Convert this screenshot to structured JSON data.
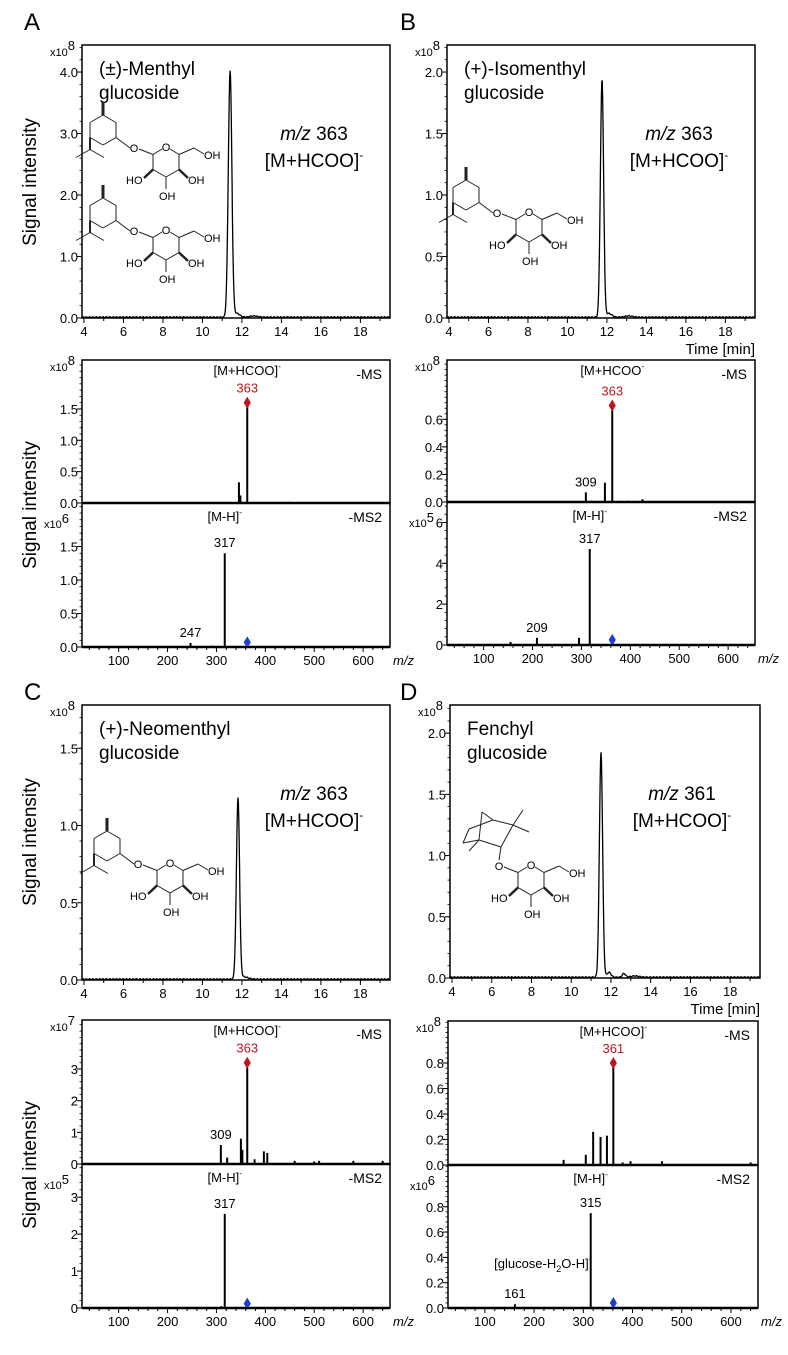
{
  "figure": {
    "panel_letters": [
      "A",
      "B",
      "C",
      "D"
    ],
    "y_axis_title": "Signal intensity",
    "time_label": "Time [min]",
    "mz_axis_label": "m/z",
    "exp_base": "x10"
  },
  "structure_labels": {
    "ring_o": "O",
    "link_o": "O",
    "oh": "OH",
    "ho": "HO"
  },
  "colors": {
    "precursor": "#c0141c",
    "isolation": "#1f3fd0",
    "line": "#000000"
  },
  "chart_data": [
    {
      "panel": "A",
      "kind": "chromatogram",
      "type": "line",
      "title_lines": [
        "(±)-Menthyl",
        "glucoside"
      ],
      "mz_text": {
        "prefix": "m/z",
        "value": "363",
        "ion": "[M+HCOO]",
        "charge": "-"
      },
      "exponent": "8",
      "xlabel": "",
      "ylabel": "Signal intensity",
      "xlim": [
        3.9,
        19.5
      ],
      "ylim": [
        0,
        4.44
      ],
      "xticks": [
        4,
        6,
        8,
        10,
        12,
        14,
        16,
        18
      ],
      "yticks": [
        "0.0",
        "1.0",
        "2.0",
        "3.0",
        "4.0"
      ],
      "peaks": [
        {
          "rt": 11.4,
          "height": 4.0,
          "width": 0.09
        },
        {
          "rt": 11.75,
          "height": 0.06,
          "width": 0.15
        },
        {
          "rt": 12.6,
          "height": 0.02,
          "width": 0.2
        }
      ]
    },
    {
      "panel": "A",
      "kind": "ms",
      "type": "bar",
      "mode": "-MS",
      "exponent": "8",
      "ylabel": "Signal intensity",
      "xlim": [
        25,
        655
      ],
      "ylim": [
        0,
        2.28
      ],
      "yticks": [
        "0.0",
        "0.5",
        "1.0",
        "1.5"
      ],
      "peaks": [
        {
          "mz": 346,
          "intensity": 0.33
        },
        {
          "mz": 349,
          "intensity": 0.12
        },
        {
          "mz": 363,
          "intensity": 1.55
        },
        {
          "mz": 450,
          "intensity": 0.02
        }
      ],
      "ion_label": {
        "text": "[M+HCOO]",
        "charge": "-",
        "mz": 363
      },
      "precursor": {
        "mz": 363,
        "intensity": 1.6,
        "label": "363"
      },
      "peak_labels": []
    },
    {
      "panel": "A",
      "kind": "ms2",
      "type": "bar",
      "mode": "-MS2",
      "exponent": "6",
      "xlabel": "m/z",
      "xlim": [
        25,
        655
      ],
      "ylim": [
        0,
        2.15
      ],
      "yticks": [
        "0.0",
        "0.5",
        "1.0",
        "1.5"
      ],
      "xticks": [
        100,
        200,
        300,
        400,
        500,
        600
      ],
      "peaks": [
        {
          "mz": 120,
          "intensity": 0.01
        },
        {
          "mz": 247,
          "intensity": 0.06
        },
        {
          "mz": 290,
          "intensity": 0.02
        },
        {
          "mz": 317,
          "intensity": 1.4
        }
      ],
      "ion_label": {
        "text": "[M-H]",
        "charge": "-",
        "mz": 317
      },
      "peak_labels": [
        {
          "mz": 317,
          "label": "317"
        },
        {
          "mz": 247,
          "label": "247"
        }
      ],
      "isolation_marker": {
        "mz": 363,
        "intensity": 0.07
      }
    },
    {
      "panel": "B",
      "kind": "chromatogram",
      "type": "line",
      "title_lines": [
        "(+)-Isomenthyl",
        "glucoside"
      ],
      "mz_text": {
        "prefix": "m/z",
        "value": "363",
        "ion": "[M+HCOO]",
        "charge": "-"
      },
      "exponent": "8",
      "xlabel": "Time [min]",
      "xlim": [
        3.9,
        19.5
      ],
      "ylim": [
        0,
        2.22
      ],
      "xticks": [
        4,
        6,
        8,
        10,
        12,
        14,
        16,
        18
      ],
      "yticks": [
        "0.0",
        "0.5",
        "1.0",
        "1.5",
        "2.0"
      ],
      "peaks": [
        {
          "rt": 11.75,
          "height": 1.93,
          "width": 0.08
        },
        {
          "rt": 12.1,
          "height": 0.03,
          "width": 0.15
        },
        {
          "rt": 13.1,
          "height": 0.01,
          "width": 0.2
        }
      ]
    },
    {
      "panel": "B",
      "kind": "ms",
      "type": "bar",
      "mode": "-MS",
      "exponent": "8",
      "xlim": [
        25,
        655
      ],
      "ylim": [
        0,
        1.03
      ],
      "yticks": [
        "0.0",
        "0.2",
        "0.4",
        "0.6"
      ],
      "peaks": [
        {
          "mz": 309,
          "intensity": 0.07
        },
        {
          "mz": 320,
          "intensity": 0.01
        },
        {
          "mz": 348,
          "intensity": 0.14
        },
        {
          "mz": 363,
          "intensity": 0.68
        },
        {
          "mz": 380,
          "intensity": 0.01
        },
        {
          "mz": 395,
          "intensity": 0.01
        },
        {
          "mz": 425,
          "intensity": 0.02
        }
      ],
      "ion_label": {
        "text": "[M+HCOO",
        "charge": "-",
        "mz": 363
      },
      "precursor": {
        "mz": 363,
        "intensity": 0.7,
        "label": "363"
      },
      "peak_labels": [
        {
          "mz": 309,
          "label": "309"
        }
      ]
    },
    {
      "panel": "B",
      "kind": "ms2",
      "type": "bar",
      "mode": "-MS2",
      "exponent": "5",
      "xlabel": "m/z",
      "xlim": [
        25,
        655
      ],
      "ylim": [
        0,
        7.0
      ],
      "yticks": [
        "0",
        "2",
        "4",
        "6"
      ],
      "xticks": [
        100,
        200,
        300,
        400,
        500,
        600
      ],
      "peaks": [
        {
          "mz": 155,
          "intensity": 0.15
        },
        {
          "mz": 209,
          "intensity": 0.35
        },
        {
          "mz": 295,
          "intensity": 0.35
        },
        {
          "mz": 317,
          "intensity": 4.7
        }
      ],
      "ion_label": {
        "text": "[M-H]",
        "charge": "-",
        "mz": 317
      },
      "peak_labels": [
        {
          "mz": 317,
          "label": "317"
        },
        {
          "mz": 209,
          "label": "209"
        }
      ],
      "isolation_marker": {
        "mz": 363,
        "intensity": 0.25
      }
    },
    {
      "panel": "C",
      "kind": "chromatogram",
      "type": "line",
      "title_lines": [
        "(+)-Neomenthyl",
        "glucoside"
      ],
      "mz_text": {
        "prefix": "m/z",
        "value": "363",
        "ion": "[M+HCOO]",
        "charge": "-"
      },
      "exponent": "8",
      "xlabel": "",
      "ylabel": "Signal intensity",
      "xlim": [
        3.9,
        19.5
      ],
      "ylim": [
        0,
        1.78
      ],
      "xticks": [
        4,
        6,
        8,
        10,
        12,
        14,
        16,
        18
      ],
      "yticks": [
        "0.0",
        "0.5",
        "1.0",
        "1.5"
      ],
      "peaks": [
        {
          "rt": 11.8,
          "height": 1.17,
          "width": 0.08
        },
        {
          "rt": 12.1,
          "height": 0.015,
          "width": 0.2
        }
      ]
    },
    {
      "panel": "C",
      "kind": "ms",
      "type": "bar",
      "mode": "-MS",
      "exponent": "7",
      "ylabel": "Signal intensity",
      "xlim": [
        25,
        655
      ],
      "ylim": [
        0,
        4.55
      ],
      "yticks": [
        "0",
        "1",
        "2",
        "3"
      ],
      "peaks": [
        {
          "mz": 240,
          "intensity": 0.03
        },
        {
          "mz": 309,
          "intensity": 0.6
        },
        {
          "mz": 322,
          "intensity": 0.2
        },
        {
          "mz": 350,
          "intensity": 0.8
        },
        {
          "mz": 353,
          "intensity": 0.45
        },
        {
          "mz": 363,
          "intensity": 3.05
        },
        {
          "mz": 378,
          "intensity": 0.15
        },
        {
          "mz": 397,
          "intensity": 0.4
        },
        {
          "mz": 404,
          "intensity": 0.35
        },
        {
          "mz": 460,
          "intensity": 0.1
        },
        {
          "mz": 500,
          "intensity": 0.08
        },
        {
          "mz": 510,
          "intensity": 0.1
        },
        {
          "mz": 580,
          "intensity": 0.1
        },
        {
          "mz": 640,
          "intensity": 0.1
        }
      ],
      "ion_label": {
        "text": "[M+HCOO]",
        "charge": "-",
        "mz": 363
      },
      "precursor": {
        "mz": 363,
        "intensity": 3.2,
        "label": "363"
      },
      "peak_labels": [
        {
          "mz": 309,
          "label": "309"
        }
      ]
    },
    {
      "panel": "C",
      "kind": "ms2",
      "type": "bar",
      "mode": "-MS2",
      "exponent": "5",
      "xlabel": "m/z",
      "xlim": [
        25,
        655
      ],
      "ylim": [
        0,
        3.9
      ],
      "yticks": [
        "0",
        "1",
        "2",
        "3"
      ],
      "xticks": [
        100,
        200,
        300,
        400,
        500,
        600
      ],
      "peaks": [
        {
          "mz": 310,
          "intensity": 0.05
        },
        {
          "mz": 317,
          "intensity": 2.55
        }
      ],
      "ion_label": {
        "text": "[M-H]",
        "charge": "-",
        "mz": 317
      },
      "peak_labels": [
        {
          "mz": 317,
          "label": "317"
        }
      ],
      "isolation_marker": {
        "mz": 363,
        "intensity": 0.12
      }
    },
    {
      "panel": "D",
      "kind": "chromatogram",
      "type": "line",
      "title_lines": [
        "Fenchyl",
        "glucoside"
      ],
      "mz_text": {
        "prefix": "m/z",
        "value": "361",
        "ion": "[M+HCOO]",
        "charge": "-"
      },
      "exponent": "8",
      "xlabel": "Time [min]",
      "xlim": [
        3.9,
        19.5
      ],
      "ylim": [
        0,
        2.23
      ],
      "xticks": [
        4,
        6,
        8,
        10,
        12,
        14,
        16,
        18
      ],
      "yticks": [
        "0.0",
        "0.5",
        "1.0",
        "1.5",
        "2.0"
      ],
      "peaks": [
        {
          "rt": 11.5,
          "height": 1.84,
          "width": 0.08
        },
        {
          "rt": 11.9,
          "height": 0.04,
          "width": 0.1
        },
        {
          "rt": 12.65,
          "height": 0.03,
          "width": 0.08
        },
        {
          "rt": 13.2,
          "height": 0.01,
          "width": 0.2
        }
      ]
    },
    {
      "panel": "D",
      "kind": "ms",
      "type": "bar",
      "mode": "-MS",
      "exponent": "8",
      "xlim": [
        25,
        655
      ],
      "ylim": [
        0,
        1.13
      ],
      "yticks": [
        "0.0",
        "0.2",
        "0.4",
        "0.6",
        "0.8"
      ],
      "peaks": [
        {
          "mz": 260,
          "intensity": 0.04
        },
        {
          "mz": 305,
          "intensity": 0.08
        },
        {
          "mz": 320,
          "intensity": 0.26
        },
        {
          "mz": 335,
          "intensity": 0.22
        },
        {
          "mz": 348,
          "intensity": 0.23
        },
        {
          "mz": 361,
          "intensity": 0.78
        },
        {
          "mz": 380,
          "intensity": 0.02
        },
        {
          "mz": 396,
          "intensity": 0.03
        },
        {
          "mz": 460,
          "intensity": 0.03
        },
        {
          "mz": 640,
          "intensity": 0.02
        }
      ],
      "ion_label": {
        "text": "[M+HCOO]",
        "charge": "-",
        "mz": 361
      },
      "precursor": {
        "mz": 361,
        "intensity": 0.8,
        "label": "361"
      },
      "peak_labels": []
    },
    {
      "panel": "D",
      "kind": "ms2",
      "type": "bar",
      "mode": "-MS2",
      "exponent": "6",
      "xlabel": "m/z",
      "xlim": [
        25,
        655
      ],
      "ylim": [
        0,
        1.13
      ],
      "yticks": [
        "0.0",
        "0.2",
        "0.4",
        "0.6",
        "0.8"
      ],
      "xticks": [
        100,
        200,
        300,
        400,
        500,
        600
      ],
      "peaks": [
        {
          "mz": 161,
          "intensity": 0.03
        },
        {
          "mz": 300,
          "intensity": 0.01
        },
        {
          "mz": 315,
          "intensity": 0.75
        }
      ],
      "ion_label": {
        "text": "[M-H]",
        "charge": "-",
        "mz": 315
      },
      "peak_labels": [
        {
          "mz": 315,
          "label": "315"
        },
        {
          "mz": 161,
          "label": "161"
        }
      ],
      "fragment_annotation": {
        "parts": [
          "[glucose-H",
          "2",
          "O-H]",
          "-"
        ],
        "mz": 161
      },
      "isolation_marker": {
        "mz": 361,
        "intensity": 0.04
      }
    }
  ]
}
